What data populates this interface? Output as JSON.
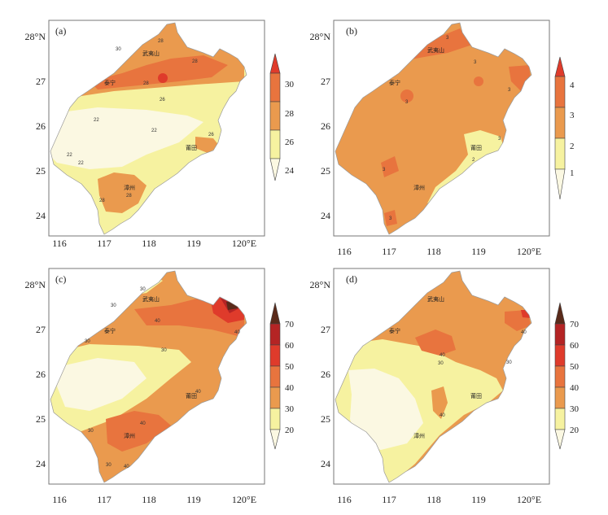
{
  "colors": {
    "c1": "#fdfdd8",
    "c2": "#f6f2a0",
    "c3": "#ea9a4e",
    "c4": "#e8743e",
    "c5": "#df3b2b",
    "c6": "#b42424",
    "c7": "#5a2a1a",
    "pale": "#fbf8e2",
    "sea": "#ffffff",
    "frame": "#777777"
  },
  "axes": {
    "x_ticks": [
      "116",
      "117",
      "118",
      "119",
      "120°E"
    ],
    "y_ticks": [
      "28°N",
      "27",
      "26",
      "25",
      "24"
    ]
  },
  "cities": {
    "wuyishan": "武夷山",
    "taining": "泰宁",
    "putian": "莆田",
    "zhangzhou": "漳州"
  },
  "panels": [
    {
      "id": "a",
      "label": "(a)",
      "colorbar": [
        "30",
        "28",
        "26",
        "24"
      ],
      "contour_labels": [
        "30",
        "28",
        "28",
        "28",
        "26",
        "26",
        "22",
        "22",
        "22",
        "22",
        "28",
        "28"
      ]
    },
    {
      "id": "b",
      "label": "(b)",
      "colorbar": [
        "4",
        "3",
        "2",
        "1"
      ],
      "contour_labels": [
        "3",
        "3",
        "3",
        "3",
        "3",
        "3",
        "2",
        "3"
      ]
    },
    {
      "id": "c",
      "label": "(c)",
      "colorbar": [
        "70",
        "60",
        "50",
        "40",
        "30",
        "20"
      ],
      "contour_labels": [
        "30",
        "40",
        "30",
        "30",
        "40",
        "40",
        "30",
        "40",
        "30",
        "30",
        "40"
      ]
    },
    {
      "id": "d",
      "label": "(d)",
      "colorbar": [
        "70",
        "60",
        "50",
        "40",
        "30",
        "20"
      ],
      "contour_labels": [
        "40",
        "30",
        "40",
        "30",
        "40"
      ]
    }
  ]
}
